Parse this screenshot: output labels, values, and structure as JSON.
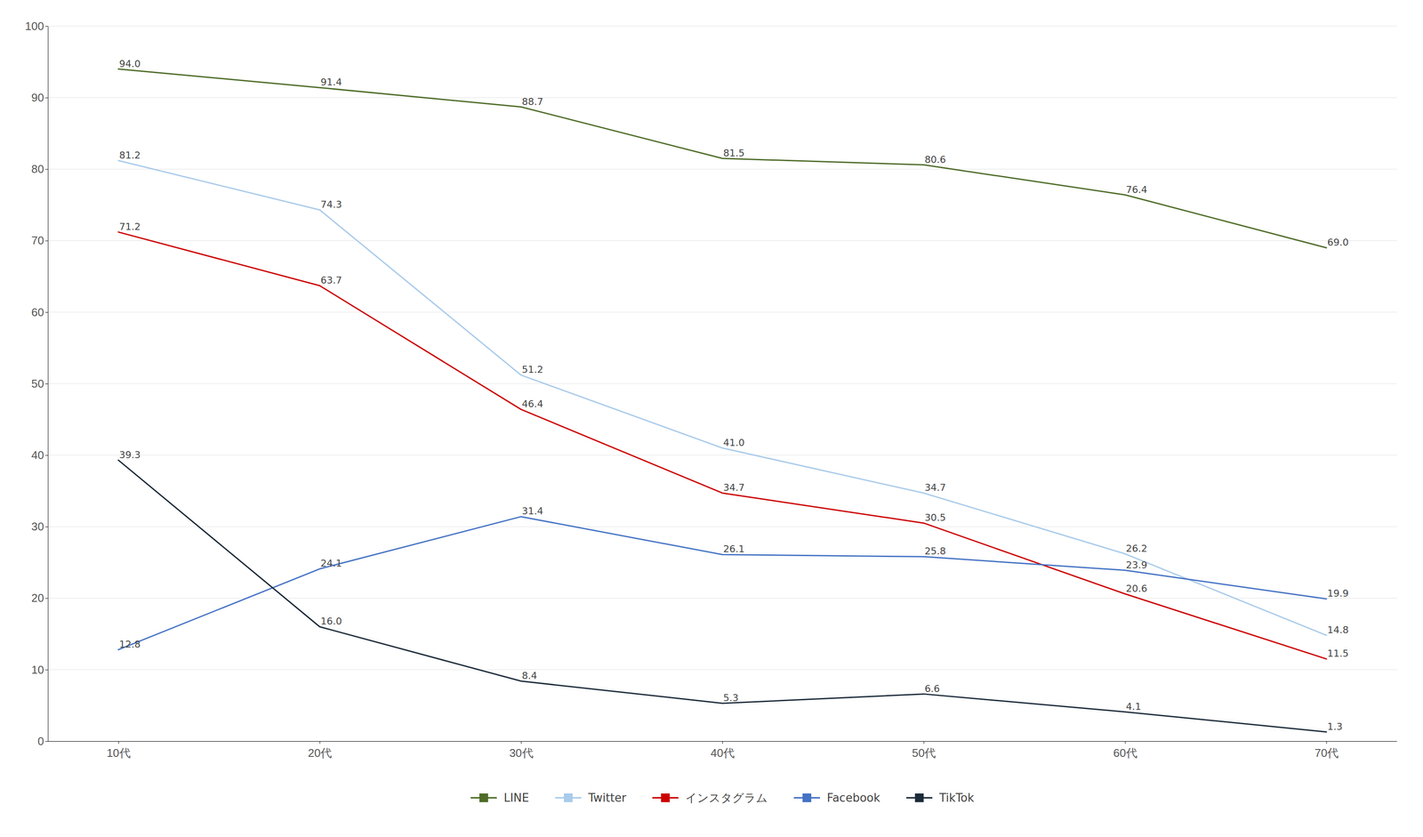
{
  "chart_data": {
    "type": "line",
    "categories": [
      "10代",
      "20代",
      "30代",
      "40代",
      "50代",
      "60代",
      "70代"
    ],
    "series": [
      {
        "name": "LINE",
        "color": "#4e6b28",
        "values": [
          94.0,
          91.4,
          88.7,
          81.5,
          80.6,
          76.4,
          69.0
        ],
        "value_labels": [
          "94.0",
          "91.4",
          "88.7",
          "81.5",
          "80.6",
          "76.4",
          "69.0"
        ]
      },
      {
        "name": "Twitter",
        "color": "#aacbea",
        "values": [
          81.2,
          74.3,
          51.2,
          41.0,
          34.7,
          26.2,
          14.8
        ],
        "value_labels": [
          "81.2",
          "74.3",
          "51.2",
          "41.0",
          "34.7",
          "26.2",
          "14.8"
        ]
      },
      {
        "name": "インスタグラム",
        "color": "#cc0000",
        "values": [
          71.2,
          63.7,
          46.4,
          34.7,
          30.5,
          20.6,
          11.5
        ],
        "value_labels": [
          "71.2",
          "63.7",
          "46.4",
          "34.7",
          "30.5",
          "20.6",
          "11.5"
        ]
      },
      {
        "name": "Facebook",
        "color": "#4472c4",
        "values": [
          12.8,
          24.1,
          31.4,
          26.1,
          25.8,
          23.9,
          19.9
        ],
        "value_labels": [
          "12.8",
          "24.1",
          "31.4",
          "26.1",
          "25.8",
          "23.9",
          "19.9"
        ]
      },
      {
        "name": "TikTok",
        "color": "#1c2b3a",
        "values": [
          39.3,
          16.0,
          8.4,
          5.3,
          6.6,
          4.1,
          1.3
        ],
        "value_labels": [
          "39.3",
          "16.0",
          "8.4",
          "5.3",
          "6.6",
          "4.1",
          "1.3"
        ]
      }
    ],
    "ylim": [
      0,
      100
    ],
    "yticks": [
      0,
      10,
      20,
      30,
      40,
      50,
      60,
      70,
      80,
      90,
      100
    ],
    "grid": true,
    "data_labels": true,
    "legend": "bottom"
  }
}
